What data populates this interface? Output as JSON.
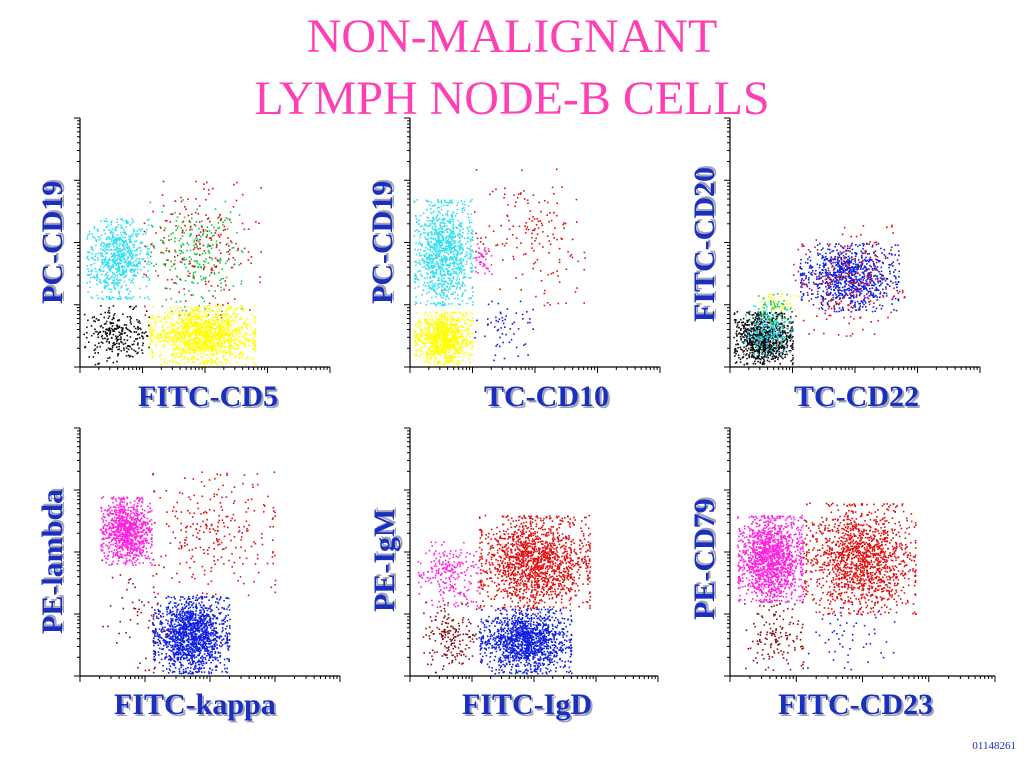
{
  "title_line1": "NON-MALIGNANT",
  "title_line2": "LYMPH NODE-B CELLS",
  "footnote": "01148261",
  "colors": {
    "title": "#ff3fb4",
    "label": "#1a2fbf",
    "cyan": "#33e0f0",
    "green": "#18c94a",
    "red": "#e01010",
    "yellow": "#ffff00",
    "black": "#111111",
    "magenta": "#ff22e0",
    "blue": "#1020e0",
    "darkred": "#8b1010"
  },
  "chart_data": [
    {
      "type": "scatter",
      "xlabel": "FITC-CD5",
      "ylabel": "PC-CD19",
      "xlim": [
        0,
        4
      ],
      "ylim": [
        0,
        4
      ],
      "log_scale": true,
      "populations": [
        {
          "color": "cyan",
          "x_range": [
            0.1,
            1.1
          ],
          "y_range": [
            1.1,
            2.4
          ],
          "count": 700
        },
        {
          "color": "green",
          "x_range": [
            1.1,
            2.6
          ],
          "y_range": [
            0.9,
            2.7
          ],
          "count": 260
        },
        {
          "color": "red",
          "x_range": [
            1.0,
            2.9
          ],
          "y_range": [
            0.8,
            3.0
          ],
          "count": 200
        },
        {
          "color": "yellow",
          "x_range": [
            1.1,
            2.8
          ],
          "y_range": [
            0.05,
            1.0
          ],
          "count": 1300
        },
        {
          "color": "black",
          "x_range": [
            0.05,
            1.1
          ],
          "y_range": [
            0.05,
            1.0
          ],
          "count": 260
        }
      ]
    },
    {
      "type": "scatter",
      "xlabel": "TC-CD10",
      "ylabel": "PC-CD19",
      "xlim": [
        0,
        4
      ],
      "ylim": [
        0,
        4
      ],
      "log_scale": true,
      "populations": [
        {
          "color": "cyan",
          "x_range": [
            0.05,
            1.0
          ],
          "y_range": [
            1.0,
            2.7
          ],
          "count": 1000
        },
        {
          "color": "yellow",
          "x_range": [
            0.05,
            1.0
          ],
          "y_range": [
            0.05,
            0.9
          ],
          "count": 900
        },
        {
          "color": "red",
          "x_range": [
            1.0,
            2.8
          ],
          "y_range": [
            1.0,
            3.2
          ],
          "count": 160
        },
        {
          "color": "blue",
          "x_range": [
            1.0,
            2.0
          ],
          "y_range": [
            0.1,
            1.1
          ],
          "count": 60
        },
        {
          "color": "magenta",
          "x_range": [
            1.0,
            1.3
          ],
          "y_range": [
            1.5,
            2.0
          ],
          "count": 40
        }
      ]
    },
    {
      "type": "scatter",
      "xlabel": "TC-CD22",
      "ylabel": "FITC-CD20",
      "xlim": [
        0,
        4
      ],
      "ylim": [
        0,
        4
      ],
      "log_scale": true,
      "populations": [
        {
          "color": "black",
          "x_range": [
            0.05,
            1.0
          ],
          "y_range": [
            0.05,
            0.9
          ],
          "count": 900
        },
        {
          "color": "cyan",
          "x_range": [
            0.2,
            1.0
          ],
          "y_range": [
            0.2,
            1.0
          ],
          "count": 200
        },
        {
          "color": "green",
          "x_range": [
            0.3,
            1.0
          ],
          "y_range": [
            0.7,
            1.2
          ],
          "count": 60
        },
        {
          "color": "yellow",
          "x_range": [
            0.4,
            1.1
          ],
          "y_range": [
            0.9,
            1.3
          ],
          "count": 30
        },
        {
          "color": "blue",
          "x_range": [
            1.1,
            2.7
          ],
          "y_range": [
            0.9,
            2.0
          ],
          "count": 900
        },
        {
          "color": "red",
          "x_range": [
            1.0,
            2.8
          ],
          "y_range": [
            0.5,
            2.3
          ],
          "count": 220
        }
      ]
    },
    {
      "type": "scatter",
      "xlabel": "FITC-kappa",
      "ylabel": "PE-lambda",
      "xlim": [
        0,
        4
      ],
      "ylim": [
        0,
        4
      ],
      "log_scale": true,
      "populations": [
        {
          "color": "magenta",
          "x_range": [
            0.3,
            1.1
          ],
          "y_range": [
            1.8,
            2.9
          ],
          "count": 900
        },
        {
          "color": "red",
          "x_range": [
            1.1,
            3.0
          ],
          "y_range": [
            1.3,
            3.3
          ],
          "count": 260
        },
        {
          "color": "blue",
          "x_range": [
            1.1,
            2.3
          ],
          "y_range": [
            0.05,
            1.3
          ],
          "count": 1400
        },
        {
          "color": "darkred",
          "x_range": [
            0.3,
            1.4
          ],
          "y_range": [
            0.1,
            1.9
          ],
          "count": 60
        }
      ]
    },
    {
      "type": "scatter",
      "xlabel": "FITC-IgD",
      "ylabel": "PE-IgM",
      "xlim": [
        0,
        4
      ],
      "ylim": [
        0,
        4
      ],
      "log_scale": true,
      "populations": [
        {
          "color": "magenta",
          "x_range": [
            0.1,
            1.1
          ],
          "y_range": [
            1.1,
            2.2
          ],
          "count": 220
        },
        {
          "color": "red",
          "x_range": [
            1.1,
            2.9
          ],
          "y_range": [
            1.1,
            2.6
          ],
          "count": 1500
        },
        {
          "color": "blue",
          "x_range": [
            1.1,
            2.6
          ],
          "y_range": [
            0.05,
            1.1
          ],
          "count": 1300
        },
        {
          "color": "darkred",
          "x_range": [
            0.2,
            1.1
          ],
          "y_range": [
            0.05,
            1.2
          ],
          "count": 180
        }
      ]
    },
    {
      "type": "scatter",
      "xlabel": "FITC-CD23",
      "ylabel": "PE-CD79",
      "xlim": [
        0,
        4
      ],
      "ylim": [
        0,
        4
      ],
      "log_scale": true,
      "populations": [
        {
          "color": "magenta",
          "x_range": [
            0.1,
            1.1
          ],
          "y_range": [
            1.2,
            2.6
          ],
          "count": 1400
        },
        {
          "color": "red",
          "x_range": [
            1.1,
            2.8
          ],
          "y_range": [
            1.0,
            2.8
          ],
          "count": 1400
        },
        {
          "color": "darkred",
          "x_range": [
            0.2,
            1.1
          ],
          "y_range": [
            0.1,
            1.2
          ],
          "count": 140
        },
        {
          "color": "blue",
          "x_range": [
            1.1,
            2.5
          ],
          "y_range": [
            0.1,
            1.2
          ],
          "count": 50
        }
      ]
    }
  ]
}
